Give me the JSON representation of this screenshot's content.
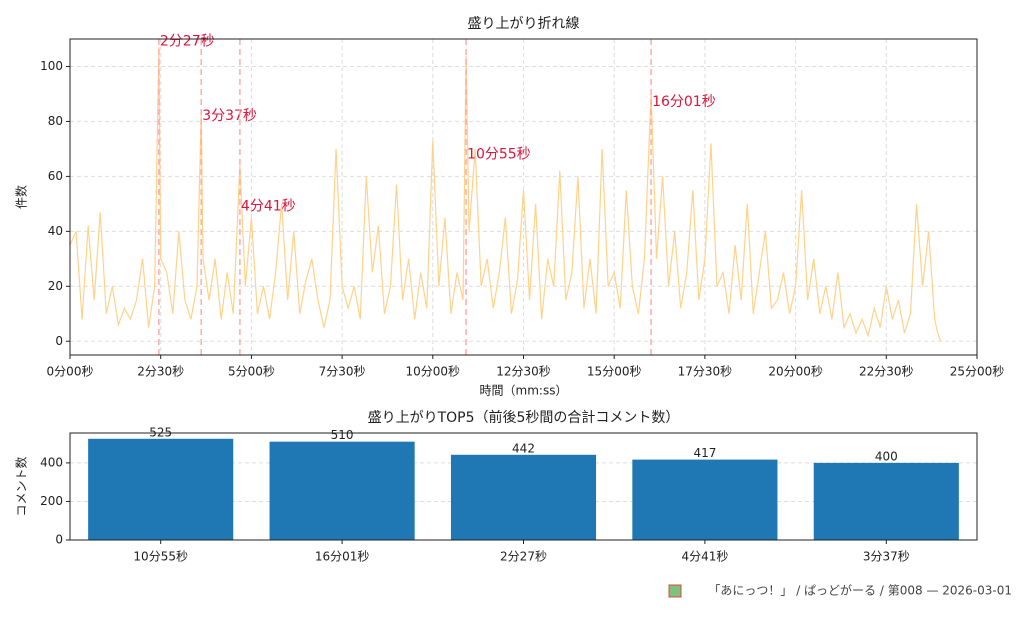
{
  "chart_data": [
    {
      "type": "line",
      "title": "盛り上がり折れ線",
      "xlabel": "時間（mm:ss）",
      "ylabel": "件数",
      "color": "#ffd28a",
      "grid": true,
      "x": [
        0,
        10,
        20,
        30,
        40,
        50,
        60,
        70,
        80,
        90,
        100,
        110,
        120,
        130,
        140,
        147,
        150,
        160,
        170,
        180,
        190,
        200,
        210,
        217,
        220,
        230,
        240,
        250,
        260,
        270,
        281,
        290,
        300,
        310,
        320,
        330,
        340,
        350,
        360,
        370,
        380,
        390,
        400,
        410,
        420,
        430,
        440,
        450,
        460,
        470,
        480,
        490,
        500,
        510,
        520,
        530,
        540,
        550,
        560,
        570,
        580,
        590,
        600,
        610,
        620,
        630,
        640,
        650,
        655,
        660,
        670,
        680,
        690,
        700,
        710,
        720,
        730,
        740,
        750,
        760,
        770,
        780,
        790,
        800,
        810,
        820,
        830,
        840,
        850,
        860,
        870,
        880,
        890,
        900,
        910,
        920,
        930,
        940,
        950,
        961,
        970,
        980,
        990,
        1000,
        1010,
        1020,
        1030,
        1040,
        1050,
        1060,
        1070,
        1080,
        1090,
        1100,
        1110,
        1120,
        1130,
        1140,
        1150,
        1160,
        1170,
        1180,
        1190,
        1200,
        1210,
        1220,
        1230,
        1240,
        1250,
        1260,
        1270,
        1280,
        1290,
        1300,
        1310,
        1320,
        1330,
        1340,
        1350,
        1360,
        1370,
        1380,
        1390,
        1400,
        1410,
        1420,
        1430,
        1435,
        1440
      ],
      "values": [
        35,
        40,
        8,
        42,
        15,
        47,
        10,
        20,
        6,
        12,
        8,
        15,
        30,
        5,
        20,
        107,
        30,
        25,
        10,
        40,
        15,
        8,
        20,
        83,
        30,
        15,
        30,
        8,
        25,
        10,
        64,
        20,
        45,
        10,
        20,
        8,
        25,
        50,
        15,
        40,
        10,
        22,
        30,
        15,
        5,
        15,
        70,
        20,
        12,
        20,
        8,
        60,
        25,
        42,
        10,
        20,
        57,
        15,
        30,
        8,
        25,
        12,
        73,
        20,
        45,
        10,
        25,
        15,
        104,
        40,
        70,
        20,
        30,
        12,
        25,
        45,
        10,
        22,
        55,
        15,
        50,
        8,
        30,
        20,
        62,
        15,
        25,
        60,
        12,
        30,
        10,
        70,
        20,
        25,
        12,
        55,
        20,
        10,
        30,
        90,
        30,
        60,
        20,
        40,
        12,
        25,
        55,
        15,
        30,
        72,
        20,
        25,
        10,
        35,
        15,
        50,
        10,
        25,
        40,
        12,
        15,
        25,
        10,
        20,
        55,
        15,
        30,
        10,
        20,
        8,
        25,
        5,
        10,
        3,
        8,
        2,
        12,
        5,
        20,
        8,
        15,
        3,
        10,
        50,
        20,
        40,
        8,
        3,
        0
      ],
      "xlim": [
        0,
        1500
      ],
      "ylim": [
        -5,
        110
      ],
      "xticks": [
        {
          "value": 0,
          "label": "0分00秒"
        },
        {
          "value": 150,
          "label": "2分30秒"
        },
        {
          "value": 300,
          "label": "5分00秒"
        },
        {
          "value": 450,
          "label": "7分30秒"
        },
        {
          "value": 600,
          "label": "10分00秒"
        },
        {
          "value": 750,
          "label": "12分30秒"
        },
        {
          "value": 900,
          "label": "15分00秒"
        },
        {
          "value": 1050,
          "label": "17分30秒"
        },
        {
          "value": 1200,
          "label": "20分00秒"
        },
        {
          "value": 1350,
          "label": "22分30秒"
        },
        {
          "value": 1500,
          "label": "25分00秒"
        }
      ],
      "yticks": [
        0,
        20,
        40,
        60,
        80,
        100
      ],
      "annotations": [
        {
          "label": "2分27秒",
          "x": 147,
          "y": 109
        },
        {
          "label": "3分37秒",
          "x": 217,
          "y": 82
        },
        {
          "label": "4分41秒",
          "x": 281,
          "y": 49
        },
        {
          "label": "10分55秒",
          "x": 655,
          "y": 68
        },
        {
          "label": "16分01秒",
          "x": 961,
          "y": 87
        }
      ],
      "annotation_color": "#dc143c",
      "marker_color": "#ffaaaa"
    },
    {
      "type": "bar",
      "title": "盛り上がりTOP5（前後5秒間の合計コメント数）",
      "ylabel": "コメント数",
      "color": "#1f77b4",
      "grid": true,
      "categories": [
        "10分55秒",
        "16分01秒",
        "2分27秒",
        "4分41秒",
        "3分37秒"
      ],
      "values": [
        525,
        510,
        442,
        417,
        400
      ],
      "ylim": [
        0,
        555
      ],
      "yticks": [
        0,
        200,
        400
      ]
    }
  ],
  "footer": "「あにっつ！」 / ぱっどがーる / 第008 — 2026-03-01"
}
